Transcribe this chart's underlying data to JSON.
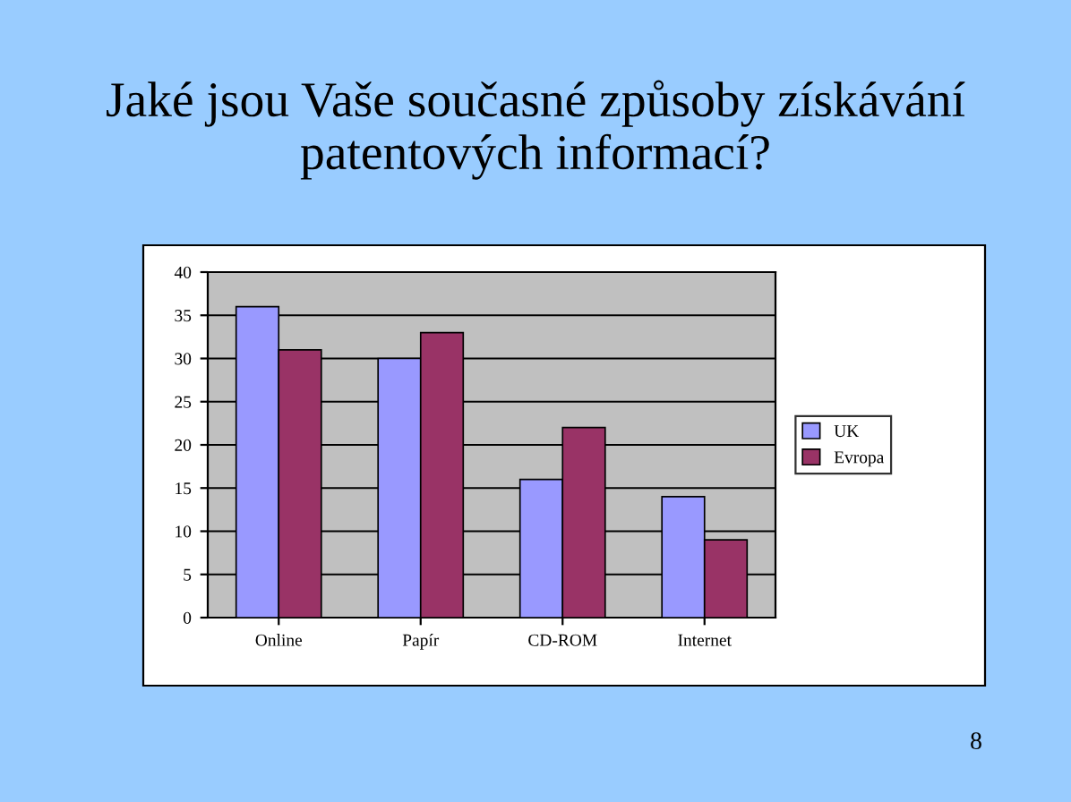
{
  "chart_data": {
    "type": "bar",
    "title": "Jaké jsou Vaše současné způsoby získávání patentových informací?",
    "categories": [
      "Online",
      "Papír",
      "CD-ROM",
      "Internet"
    ],
    "series": [
      {
        "name": "UK",
        "color": "#9999ff",
        "values": [
          36,
          30,
          16,
          14
        ]
      },
      {
        "name": "Evropa",
        "color": "#993366",
        "values": [
          31,
          33,
          22,
          9
        ]
      }
    ],
    "ylim": [
      0,
      40
    ],
    "yticks": [
      0,
      5,
      10,
      15,
      20,
      25,
      30,
      35,
      40
    ],
    "grid": "y",
    "legend": "right",
    "annotations": [
      "8"
    ]
  }
}
